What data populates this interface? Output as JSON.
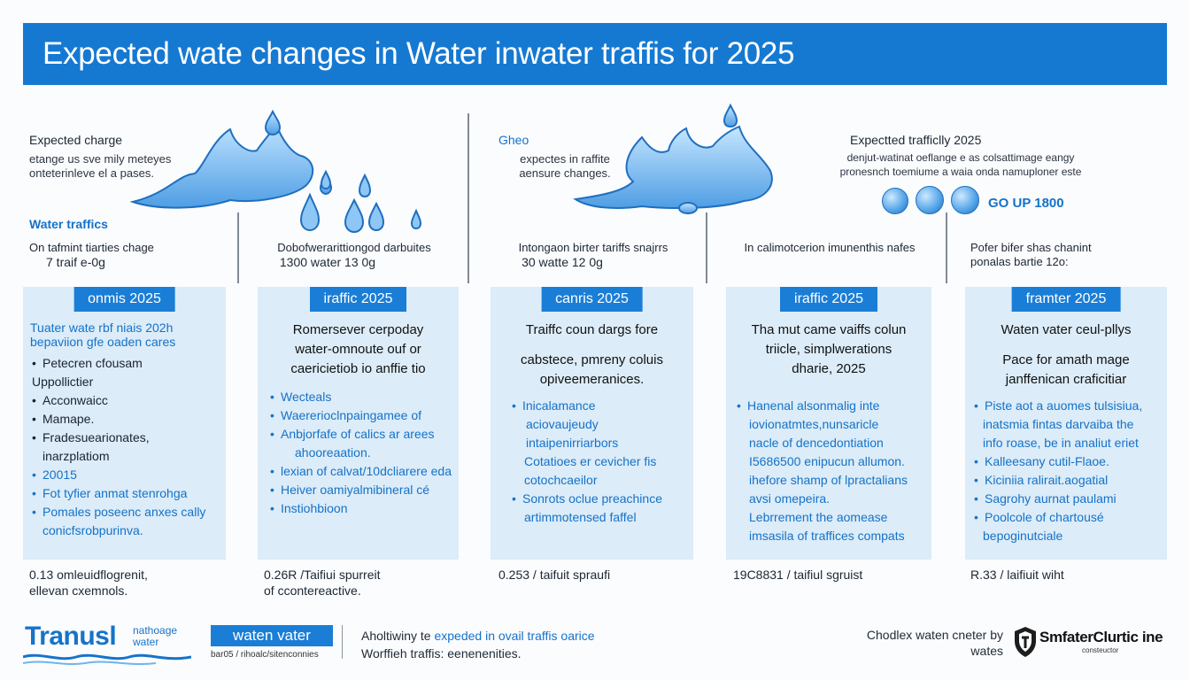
{
  "title": "Expected wate changes in Water inwater traffis for 2025",
  "top": {
    "left": {
      "heading": "Expected charge",
      "text1": "etange us sve mily meteyes",
      "text2": "onteterinleve el a pases.",
      "water_traffics_label": "Water traffics"
    },
    "middle": {
      "heading": "Gheo",
      "text1": "expectes in raffite",
      "text2": "aensure changes."
    },
    "right": {
      "heading": "Expectted trafficlly 2025",
      "text1": "denjut-watinat oeflange e as colsattimage eangy",
      "text2": "pronesnch toemiume a waia onda namuploner este",
      "go_up": "GO UP 1800"
    }
  },
  "columns": [
    {
      "head1": "On tafmint tiarties chage",
      "head2": "7 traif e-0g",
      "tag": "onmis 2025",
      "desc_lines": [],
      "subtitle1": "Tuater wate rbf niais 202h",
      "subtitle2": "bepaviion gfe oaden cares",
      "bullets": [
        {
          "text": "Petecren cfousam",
          "style": "bullet"
        },
        {
          "text": "Uppollictier",
          "style": "plain"
        },
        {
          "text": "Acconwaicc",
          "style": "bullet"
        },
        {
          "text": "Mamape.",
          "style": "bullet"
        },
        {
          "text": "Fradesuearionates,",
          "style": "bullet"
        },
        {
          "text": "inarzplatiom",
          "style": "plain-indent"
        },
        {
          "text": "20015",
          "style": "blue"
        },
        {
          "text": "Fot tyfier anmat stenrohga",
          "style": "blue"
        },
        {
          "text": "Pomales poseenc anxes cally",
          "style": "blue"
        },
        {
          "text": "conicfsrobpurinva.",
          "style": "blue-indent"
        }
      ],
      "foot1": "0.13 omleuidflogrenit,",
      "foot2": "ellevan cxemnols."
    },
    {
      "head1": "Dobofwerarittiongod darbuites",
      "head2": "1300 water 13 0g",
      "tag": "iraffic 2025",
      "desc_lines": [
        "Romersever cerpoday",
        "water-omnoute ouf or",
        "caericietiob io anffie tio"
      ],
      "bullets": [
        {
          "text": "Wecteals",
          "style": "blue"
        },
        {
          "text": "Waererioclnpaingamee of",
          "style": "blue"
        },
        {
          "text": "Anbjorfafe of calics ar arees",
          "style": "blue"
        },
        {
          "text": "ahooreaation.",
          "style": "blue-indent"
        },
        {
          "text": "lexian of calvat/10dcliarere eda",
          "style": "blue"
        },
        {
          "text": "Heiver oamiyalmibineral cé",
          "style": "blue"
        },
        {
          "text": "Instiohbioon",
          "style": "blue"
        }
      ],
      "foot1": "0.26R /Taifiui spurreit",
      "foot2": "of ccontereactive."
    },
    {
      "head1": "Intongaon birter tariffs snajrrs",
      "head2": "30 watte 12 0g",
      "tag": "canris 2025",
      "desc_lines": [
        "Traiffc coun dargs fore",
        "",
        "cabstece, pmreny coluis",
        "opiveemeranices."
      ],
      "bullets": [
        {
          "text": "Inicalamance",
          "style": "blue"
        },
        {
          "text": "aciovaujeudy",
          "style": "blue-indent"
        },
        {
          "text": "intaipenirriarbors",
          "style": "blue-indent"
        },
        {
          "text": "Cotatioes er cevicher fis",
          "style": "blue-indent"
        },
        {
          "text": "cotochcaeilor",
          "style": "blue-indent"
        },
        {
          "text": "Sonrots oclue preachince",
          "style": "blue"
        },
        {
          "text": "artimmotensed faffel",
          "style": "blue-indent"
        }
      ],
      "foot1": "0.253 / taifuit spraufi",
      "foot2": ""
    },
    {
      "head1": "In calimotcerion imunenthis nafes",
      "head2": "",
      "tag": "iraffic 2025",
      "desc_lines": [
        "Tha mut came vaiffs colun",
        "triicle, simplwerations",
        "dharie, 2025"
      ],
      "bullets": [
        {
          "text": "Hanenal alsonmalig inte",
          "style": "blue"
        },
        {
          "text": "iovionatmtes,nunsaricle",
          "style": "blue-indent"
        },
        {
          "text": "nacle of dencedontiation",
          "style": "blue-indent"
        },
        {
          "text": "I5686500 enipucun allumon.",
          "style": "blue-indent"
        },
        {
          "text": "ihefore shamp of lpractalians",
          "style": "blue-indent"
        },
        {
          "text": "avsi omepeira.",
          "style": "blue-indent"
        },
        {
          "text": "Lebrrement the aomease",
          "style": "blue-indent"
        },
        {
          "text": "imsasila of traffices compats",
          "style": "blue-indent"
        }
      ],
      "foot1": "19C8831 / taifiul sgruist",
      "foot2": ""
    },
    {
      "head1": "Pofer bifer shas chanint",
      "head2": "ponalas bartie 12o:",
      "tag": "framter 2025",
      "desc_lines": [
        "Waten vater ceul-pllys",
        "",
        "Pace for amath mage",
        "janffenican craficitiar"
      ],
      "bullets": [
        {
          "text": "Piste aot a auomes tulsisiua,",
          "style": "blue"
        },
        {
          "text": "inatsmia fintas darvaiba the",
          "style": "blue-indent"
        },
        {
          "text": "info roase, be in analiut eriet",
          "style": "blue-indent"
        },
        {
          "text": "Kalleesany cutil-Flaoe.",
          "style": "blue"
        },
        {
          "text": "Kiciniia ralirait.aogatial",
          "style": "blue"
        },
        {
          "text": "Sagrohy aurnat paulami",
          "style": "blue"
        },
        {
          "text": "Poolcole of chartousé",
          "style": "blue"
        },
        {
          "text": "bepoginutciale",
          "style": "blue-indent"
        }
      ],
      "foot1": "R.33 / laifiuit wiht",
      "foot2": ""
    }
  ],
  "footer": {
    "logo1": "Tranusl",
    "logo1_sub1": "nathoage",
    "logo1_sub2": "water",
    "logo2": "waten vater",
    "logo2_sub": "bar05 / rihoalc/sitenconnies",
    "note_prefix": "Aholtiwiny te",
    "note_highlight": "expeded in ovail traffis oarice",
    "note_line2": "Worffieh traffis: eenenenities.",
    "credit1": "Chodlex waten cneter by",
    "credit2": "wates",
    "brand": "SmfaterClurtic ine",
    "brand_sub": "consteuctor"
  },
  "colors": {
    "banner": "#1579d2",
    "card_bg": "#dcecf8",
    "tag_bg": "#1a7ed6",
    "accent_text": "#1572c9"
  }
}
